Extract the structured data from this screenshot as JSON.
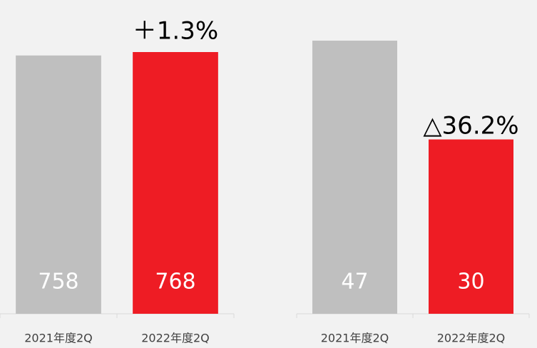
{
  "chart_data": [
    {
      "type": "bar",
      "categories": [
        "2021年度2Q",
        "2022年度2Q"
      ],
      "values": [
        758,
        768
      ],
      "colors": [
        "#bfbfbf",
        "#ee1c24"
      ],
      "annotation": "＋1.3%"
    },
    {
      "type": "bar",
      "categories": [
        "2021年度2Q",
        "2022年度2Q"
      ],
      "values": [
        47,
        30
      ],
      "colors": [
        "#bfbfbf",
        "#ee1c24"
      ],
      "annotation": "△36.2%"
    }
  ]
}
